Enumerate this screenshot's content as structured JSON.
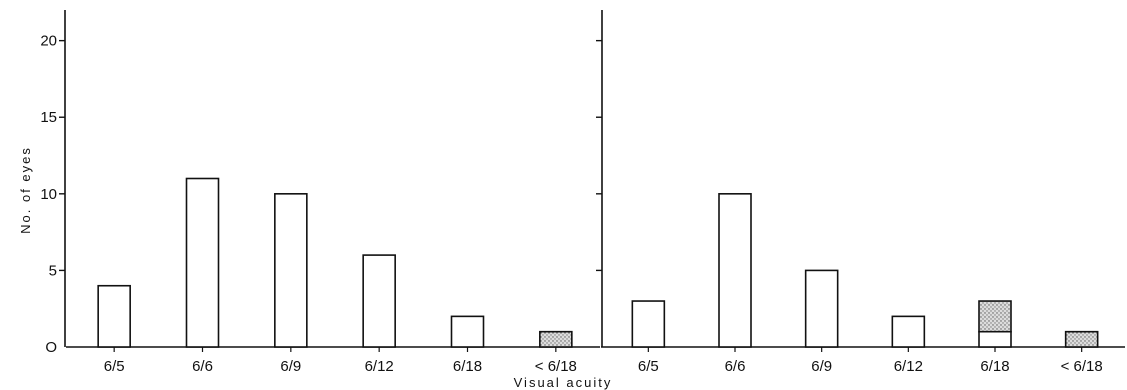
{
  "chart_data": [
    {
      "type": "bar",
      "title": "",
      "xlabel": "Visual acuity",
      "ylabel": "No. of eyes",
      "ylim": [
        0,
        22
      ],
      "yticks": [
        0,
        5,
        10,
        15,
        20
      ],
      "ytick_labels": [
        "O",
        "5",
        "10",
        "15",
        "20"
      ],
      "categories": [
        "6/5",
        "6/6",
        "6/9",
        "6/12",
        "6/18",
        "< 6/18"
      ],
      "series": [
        {
          "style": "plain",
          "values": [
            4,
            11,
            10,
            6,
            2,
            0
          ]
        },
        {
          "style": "stippled",
          "values": [
            0,
            0,
            0,
            0,
            0,
            1
          ]
        }
      ],
      "grid": false
    },
    {
      "type": "bar",
      "title": "",
      "xlabel": "Visual acuity",
      "ylabel": "",
      "ylim": [
        0,
        22
      ],
      "yticks": [
        0,
        5,
        10,
        15,
        20
      ],
      "categories": [
        "6/5",
        "6/6",
        "6/9",
        "6/12",
        "6/18",
        "< 6/18"
      ],
      "series": [
        {
          "style": "plain",
          "values": [
            3,
            10,
            5,
            2,
            1,
            0
          ]
        },
        {
          "style": "stippled",
          "values": [
            0,
            0,
            0,
            0,
            2,
            1
          ]
        }
      ],
      "grid": false
    }
  ],
  "colors": {
    "ink": "#111111",
    "plain_fill": "#ffffff",
    "stipple_fill": "#d4d4d4"
  }
}
